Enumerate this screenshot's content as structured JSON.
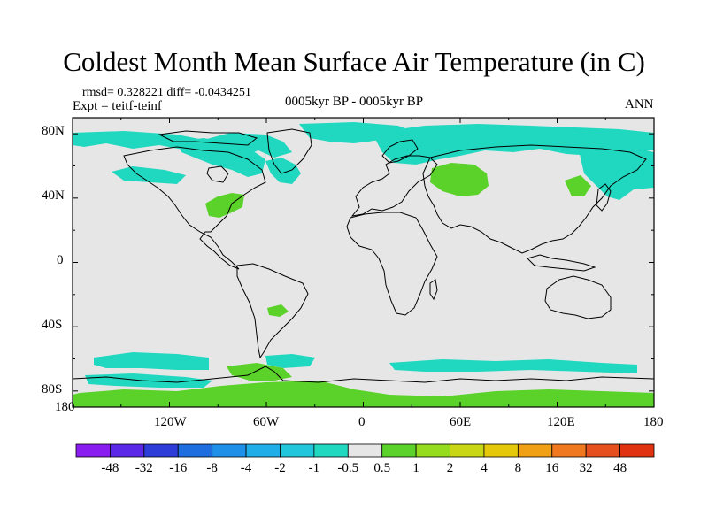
{
  "title": "Coldest Month Mean Surface Air Temperature (in C)",
  "stats": "rmsd= 0.328221  diff= -0.0434251",
  "experiment": "Expt = teitf-teinf",
  "period": "0005kyr BP - 0005kyr BP",
  "season": "ANN",
  "map": {
    "projection": "cylindrical equidistant",
    "lon_range": [
      -180,
      180
    ],
    "lat_range": [
      -90,
      90
    ],
    "lon_ticks": [
      "180",
      "120W",
      "60W",
      "0",
      "60E",
      "120E",
      "180"
    ],
    "lat_ticks": [
      "80N",
      "40N",
      "0",
      "40S",
      "80S"
    ]
  },
  "legend": {
    "labels": [
      "-48",
      "-32",
      "-16",
      "-8",
      "-4",
      "-2",
      "-1",
      "-0.5",
      "0.5",
      "1",
      "2",
      "4",
      "8",
      "16",
      "32",
      "48"
    ],
    "colors": [
      "#8a1cf0",
      "#5a28e6",
      "#2d3ed8",
      "#1f6ee0",
      "#1e90e8",
      "#20aee8",
      "#22c6dc",
      "#20d8c0",
      "#e6e6e6",
      "#5ad22a",
      "#96dc1e",
      "#c8d614",
      "#e6c80a",
      "#f0a014",
      "#f0781e",
      "#e6501e",
      "#e03210"
    ]
  },
  "colors": {
    "land_outline": "#000000",
    "no_change": "#e6e6e6",
    "cooling": "#20d8c0",
    "warming": "#5ad22a"
  }
}
